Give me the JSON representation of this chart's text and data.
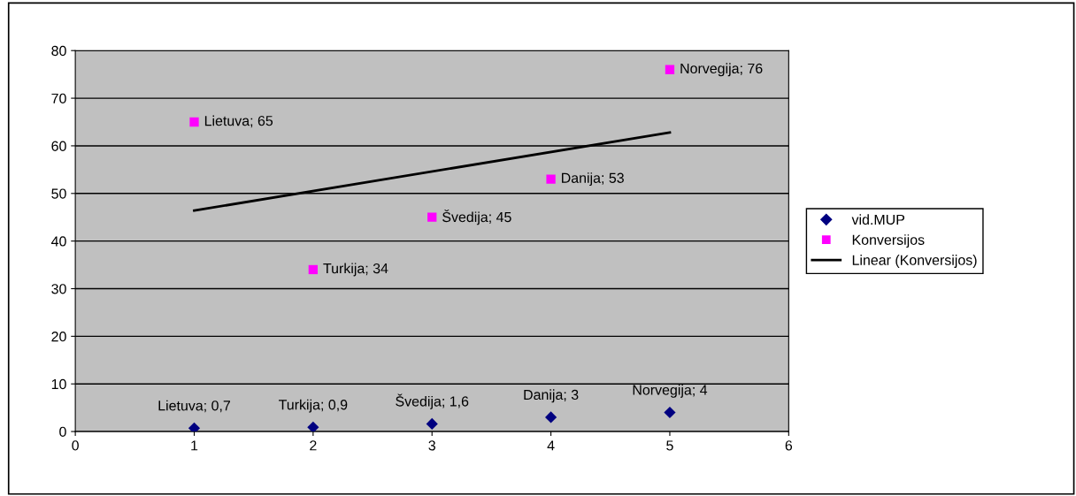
{
  "chart_data": {
    "type": "scatter",
    "x": [
      1,
      2,
      3,
      4,
      5
    ],
    "series": [
      {
        "name": "vid.MUP",
        "color": "#000080",
        "marker": "diamond",
        "values": [
          0.7,
          0.9,
          1.6,
          3,
          4
        ],
        "value_labels": [
          "Lietuva; 0,7",
          "Turkija; 0,9",
          "Švedija; 1,6",
          "Danija; 3",
          "Norvegija; 4"
        ]
      },
      {
        "name": "Konversijos",
        "color": "#ff00ff",
        "marker": "square",
        "values": [
          65,
          34,
          45,
          53,
          76
        ],
        "value_labels": [
          "Lietuva; 65",
          "Turkija; 34",
          "Švedija; 45",
          "Danija; 53",
          "Norvegija; 76"
        ]
      },
      {
        "name": "Linear (Konversijos)",
        "type": "line",
        "color": "#000000",
        "marker": "none",
        "x": [
          1,
          5
        ],
        "values": [
          46.4,
          62.8
        ]
      }
    ],
    "xlim": [
      0,
      6
    ],
    "xticks": [
      0,
      1,
      2,
      3,
      4,
      5,
      6
    ],
    "ylim": [
      0,
      80
    ],
    "yticks": [
      0,
      10,
      20,
      30,
      40,
      50,
      60,
      70,
      80
    ],
    "grid": "y",
    "legend": "right"
  }
}
